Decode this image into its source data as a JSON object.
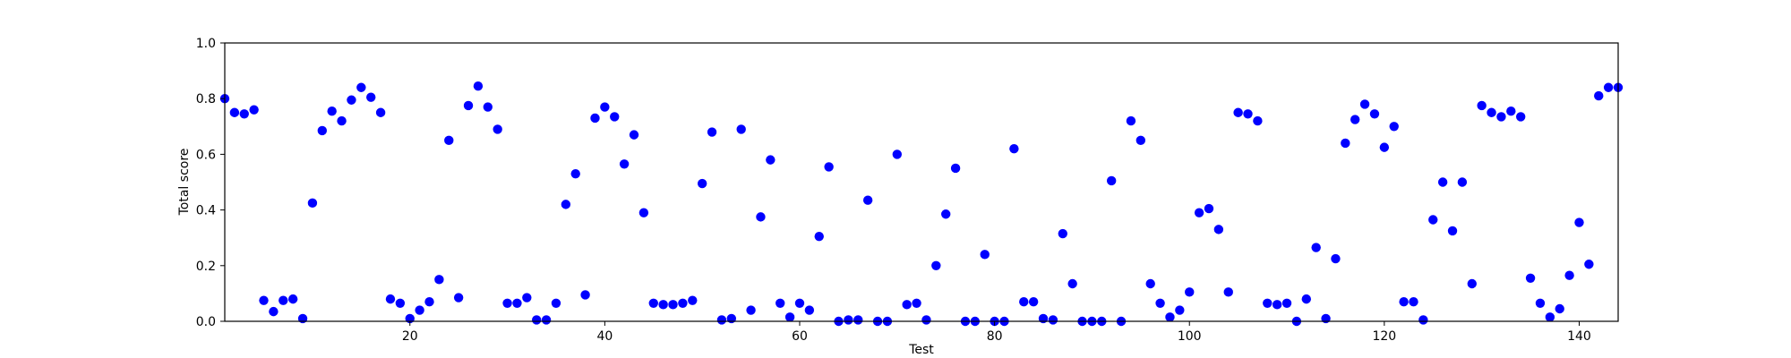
{
  "chart_data": {
    "type": "scatter",
    "title": "",
    "xlabel": "Test",
    "ylabel": "Total score",
    "xlim": [
      1,
      144
    ],
    "ylim": [
      0,
      1
    ],
    "x_ticks": [
      20,
      40,
      60,
      80,
      100,
      120,
      140
    ],
    "x_tick_labels": [
      "20",
      "40",
      "60",
      "80",
      "100",
      "120",
      "140"
    ],
    "y_ticks": [
      0,
      0.2,
      0.4,
      0.6,
      0.8,
      1.0
    ],
    "y_tick_labels": [
      "0.0",
      "0.2",
      "0.4",
      "0.6",
      "0.8",
      "1.0"
    ],
    "grid": false,
    "legend": "none",
    "marker_color": "#0000ff",
    "series": [
      {
        "name": "",
        "x": [
          1,
          2,
          3,
          4,
          5,
          6,
          7,
          8,
          9,
          10,
          11,
          12,
          13,
          14,
          15,
          16,
          17,
          18,
          19,
          20,
          21,
          22,
          23,
          24,
          25,
          26,
          27,
          28,
          29,
          30,
          31,
          32,
          33,
          34,
          35,
          36,
          37,
          38,
          39,
          40,
          41,
          42,
          43,
          44,
          45,
          46,
          47,
          48,
          49,
          50,
          51,
          52,
          53,
          54,
          55,
          56,
          57,
          58,
          59,
          60,
          61,
          62,
          63,
          64,
          65,
          66,
          67,
          68,
          69,
          70,
          71,
          72,
          73,
          74,
          75,
          76,
          77,
          78,
          79,
          80,
          81,
          82,
          83,
          84,
          85,
          86,
          87,
          88,
          89,
          90,
          91,
          92,
          93,
          94,
          95,
          96,
          97,
          98,
          99,
          100,
          101,
          102,
          103,
          104,
          105,
          106,
          107,
          108,
          109,
          110,
          111,
          112,
          113,
          114,
          115,
          116,
          117,
          118,
          119,
          120,
          121,
          122,
          123,
          124,
          125,
          126,
          127,
          128,
          129,
          130,
          131,
          132,
          133,
          134,
          135,
          136,
          137,
          138,
          139,
          140,
          141,
          142,
          143,
          144
        ],
        "y": [
          0.8,
          0.75,
          0.745,
          0.76,
          0.075,
          0.035,
          0.075,
          0.08,
          0.01,
          0.425,
          0.685,
          0.755,
          0.72,
          0.795,
          0.84,
          0.805,
          0.75,
          0.08,
          0.065,
          0.01,
          0.04,
          0.07,
          0.15,
          0.65,
          0.085,
          0.775,
          0.845,
          0.77,
          0.69,
          0.065,
          0.065,
          0.085,
          0.005,
          0.005,
          0.065,
          0.42,
          0.53,
          0.095,
          0.73,
          0.77,
          0.735,
          0.565,
          0.67,
          0.39,
          0.065,
          0.06,
          0.06,
          0.065,
          0.075,
          0.495,
          0.68,
          0.005,
          0.01,
          0.69,
          0.04,
          0.375,
          0.58,
          0.065,
          0.015,
          0.065,
          0.04,
          0.305,
          0.555,
          0.0,
          0.005,
          0.005,
          0.435,
          0.0,
          0.0,
          0.6,
          0.06,
          0.065,
          0.005,
          0.2,
          0.385,
          0.55,
          0.0,
          0.0,
          0.24,
          0.0,
          0.0,
          0.62,
          0.07,
          0.07,
          0.01,
          0.005,
          0.315,
          0.135,
          0.0,
          0.0,
          0.0,
          0.505,
          0.0,
          0.72,
          0.65,
          0.135,
          0.065,
          0.015,
          0.04,
          0.105,
          0.39,
          0.405,
          0.33,
          0.105,
          0.75,
          0.745,
          0.72,
          0.065,
          0.06,
          0.065,
          0.0,
          0.08,
          0.265,
          0.01,
          0.225,
          0.64,
          0.725,
          0.78,
          0.745,
          0.625,
          0.7,
          0.07,
          0.07,
          0.005,
          0.365,
          0.5,
          0.325,
          0.5,
          0.135,
          0.775,
          0.75,
          0.735,
          0.755,
          0.735,
          0.155,
          0.065,
          0.015,
          0.045,
          0.165,
          0.355,
          0.205,
          0.81,
          0.84,
          0.84
        ]
      }
    ]
  }
}
